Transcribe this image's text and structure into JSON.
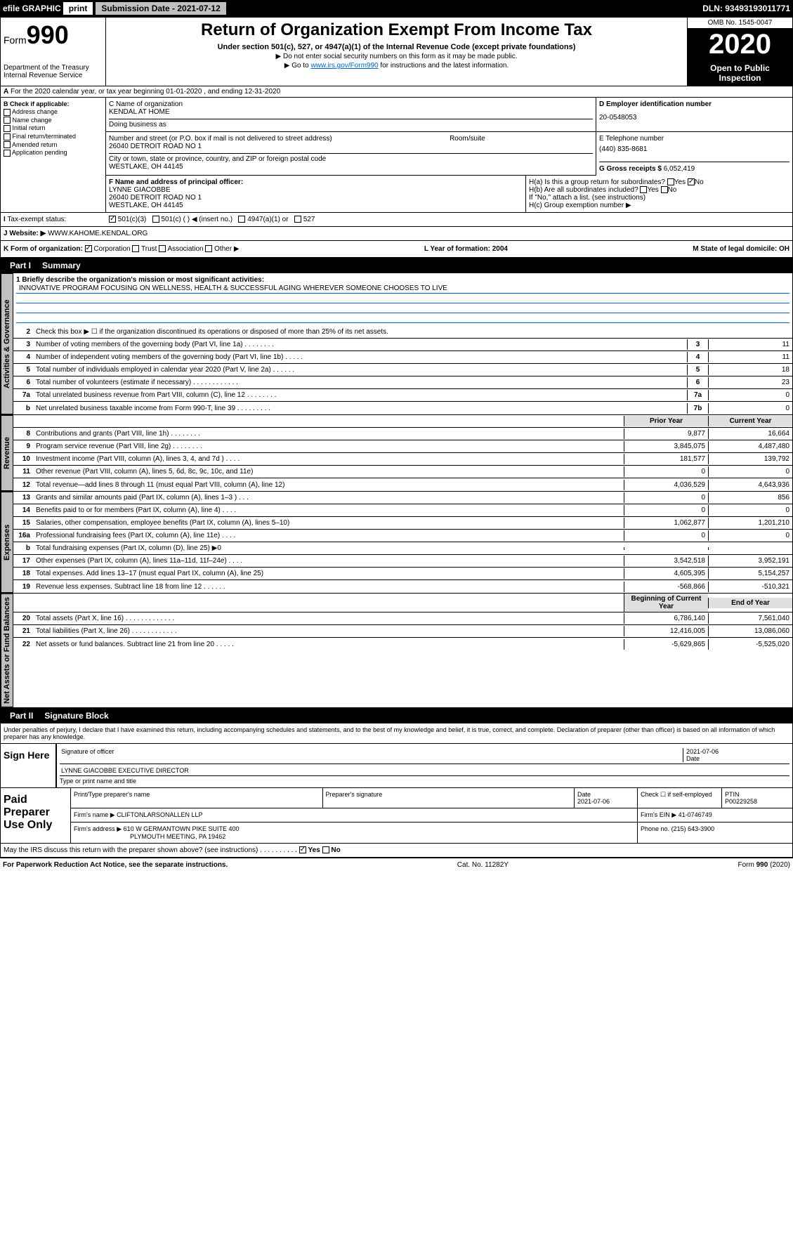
{
  "header": {
    "efile": "efile GRAPHIC",
    "print": "print",
    "submission_label": "Submission Date - 2021-07-12",
    "dln": "DLN: 93493193011771"
  },
  "form_box": {
    "form_text": "Form",
    "form_num": "990",
    "dept": "Department of the Treasury",
    "irs": "Internal Revenue Service"
  },
  "title": {
    "main": "Return of Organization Exempt From Income Tax",
    "sub": "Under section 501(c), 527, or 4947(a)(1) of the Internal Revenue Code (except private foundations)",
    "note1": "▶ Do not enter social security numbers on this form as it may be made public.",
    "note2_pre": "▶ Go to ",
    "note2_link": "www.irs.gov/Form990",
    "note2_post": " for instructions and the latest information."
  },
  "year_box": {
    "omb": "OMB No. 1545-0047",
    "year": "2020",
    "open": "Open to Public Inspection"
  },
  "row_a": "For the 2020 calendar year, or tax year beginning 01-01-2020    , and ending 12-31-2020",
  "col_b": {
    "header": "B Check if applicable:",
    "addr": "Address change",
    "name": "Name change",
    "initial": "Initial return",
    "final": "Final return/terminated",
    "amended": "Amended return",
    "app": "Application pending"
  },
  "col_c": {
    "name_label": "C Name of organization",
    "name": "KENDAL AT HOME",
    "dba_label": "Doing business as",
    "addr_label": "Number and street (or P.O. box if mail is not delivered to street address)",
    "addr": "26040 DETROIT ROAD NO 1",
    "room_label": "Room/suite",
    "city_label": "City or town, state or province, country, and ZIP or foreign postal code",
    "city": "WESTLAKE, OH  44145"
  },
  "col_d": {
    "label": "D Employer identification number",
    "value": "20-0548053"
  },
  "col_e": {
    "label": "E Telephone number",
    "value": "(440) 835-8681"
  },
  "col_g": {
    "label": "G Gross receipts $",
    "value": "6,052,419"
  },
  "col_f": {
    "label": "F Name and address of principal officer:",
    "name": "LYNNE GIACOBBE",
    "addr1": "26040 DETROIT ROAD NO 1",
    "addr2": "WESTLAKE, OH  44145"
  },
  "col_h": {
    "a": "H(a)  Is this a group return for subordinates?",
    "b": "H(b)  Are all subordinates included?",
    "b_note": "If \"No,\" attach a list. (see instructions)",
    "c": "H(c)  Group exemption number ▶",
    "yes": "Yes",
    "no": "No"
  },
  "status": {
    "i": "I",
    "label": "Tax-exempt status:",
    "c3": "501(c)(3)",
    "c": "501(c) (   ) ◀ (insert no.)",
    "a1": "4947(a)(1) or",
    "s527": "527"
  },
  "website": {
    "j": "J",
    "label": "Website: ▶",
    "value": "WWW.KAHOME.KENDAL.ORG"
  },
  "form_org": {
    "k": "K Form of organization:",
    "corp": "Corporation",
    "trust": "Trust",
    "assoc": "Association",
    "other": "Other ▶",
    "l": "L Year of formation: 2004",
    "m": "M State of legal domicile: OH"
  },
  "part1": {
    "header": "Part I",
    "title": "Summary",
    "vtab1": "Activities & Governance",
    "vtab2": "Revenue",
    "vtab3": "Expenses",
    "vtab4": "Net Assets or Fund Balances",
    "line1_label": "1  Briefly describe the organization's mission or most significant activities:",
    "line1_text": "INNOVATIVE PROGRAM FOCUSING ON WELLNESS, HEALTH & SUCCESSFUL AGING WHEREVER SOMEONE CHOOSES TO LIVE",
    "line2": "Check this box ▶ ☐ if the organization discontinued its operations or disposed of more than 25% of its net assets.",
    "lines_gov": [
      {
        "n": "3",
        "t": "Number of voting members of the governing body (Part VI, line 1a)   .    .    .    .    .    .    .    .",
        "b": "3",
        "v": "11"
      },
      {
        "n": "4",
        "t": "Number of independent voting members of the governing body (Part VI, line 1b)   .    .    .    .    .",
        "b": "4",
        "v": "11"
      },
      {
        "n": "5",
        "t": "Total number of individuals employed in calendar year 2020 (Part V, line 2a)   .    .    .    .    .    .",
        "b": "5",
        "v": "18"
      },
      {
        "n": "6",
        "t": "Total number of volunteers (estimate if necessary)   .    .    .    .    .    .    .    .    .    .    .    .",
        "b": "6",
        "v": "23"
      },
      {
        "n": "7a",
        "t": "Total unrelated business revenue from Part VIII, column (C), line 12   .    .    .    .    .    .    .    .",
        "b": "7a",
        "v": "0"
      },
      {
        "n": "b",
        "t": "Net unrelated business taxable income from Form 990-T, line 39   .    .    .    .    .    .    .    .    .",
        "b": "7b",
        "v": "0"
      }
    ],
    "prior_year": "Prior Year",
    "current_year": "Current Year",
    "lines_rev": [
      {
        "n": "8",
        "t": "Contributions and grants (Part VIII, line 1h)   .    .    .    .    .    .    .    .",
        "py": "9,877",
        "cy": "16,664"
      },
      {
        "n": "9",
        "t": "Program service revenue (Part VIII, line 2g)   .    .    .    .    .    .    .    .",
        "py": "3,845,075",
        "cy": "4,487,480"
      },
      {
        "n": "10",
        "t": "Investment income (Part VIII, column (A), lines 3, 4, and 7d )   .    .    .    .",
        "py": "181,577",
        "cy": "139,792"
      },
      {
        "n": "11",
        "t": "Other revenue (Part VIII, column (A), lines 5, 6d, 8c, 9c, 10c, and 11e)",
        "py": "0",
        "cy": "0"
      },
      {
        "n": "12",
        "t": "Total revenue—add lines 8 through 11 (must equal Part VIII, column (A), line 12)",
        "py": "4,036,529",
        "cy": "4,643,936"
      }
    ],
    "lines_exp": [
      {
        "n": "13",
        "t": "Grants and similar amounts paid (Part IX, column (A), lines 1–3 )   .    .    .",
        "py": "0",
        "cy": "856"
      },
      {
        "n": "14",
        "t": "Benefits paid to or for members (Part IX, column (A), line 4)   .    .    .    .",
        "py": "0",
        "cy": "0"
      },
      {
        "n": "15",
        "t": "Salaries, other compensation, employee benefits (Part IX, column (A), lines 5–10)",
        "py": "1,062,877",
        "cy": "1,201,210"
      },
      {
        "n": "16a",
        "t": "Professional fundraising fees (Part IX, column (A), line 11e)   .    .    .    .",
        "py": "0",
        "cy": "0"
      },
      {
        "n": "b",
        "t": "Total fundraising expenses (Part IX, column (D), line 25) ▶0",
        "py": "",
        "cy": ""
      },
      {
        "n": "17",
        "t": "Other expenses (Part IX, column (A), lines 11a–11d, 11f–24e)   .    .    .    .",
        "py": "3,542,518",
        "cy": "3,952,191"
      },
      {
        "n": "18",
        "t": "Total expenses. Add lines 13–17 (must equal Part IX, column (A), line 25)",
        "py": "4,605,395",
        "cy": "5,154,257"
      },
      {
        "n": "19",
        "t": "Revenue less expenses. Subtract line 18 from line 12   .    .    .    .    .    .",
        "py": "-568,866",
        "cy": "-510,321"
      }
    ],
    "boy": "Beginning of Current Year",
    "eoy": "End of Year",
    "lines_net": [
      {
        "n": "20",
        "t": "Total assets (Part X, line 16)   .    .    .    .    .    .    .    .    .    .    .    .    .",
        "py": "6,786,140",
        "cy": "7,561,040"
      },
      {
        "n": "21",
        "t": "Total liabilities (Part X, line 26)   .    .    .    .    .    .    .    .    .    .    .    .",
        "py": "12,416,005",
        "cy": "13,086,060"
      },
      {
        "n": "22",
        "t": "Net assets or fund balances. Subtract line 21 from line 20   .    .    .    .    .",
        "py": "-5,629,865",
        "cy": "-5,525,020"
      }
    ]
  },
  "part2": {
    "header": "Part II",
    "title": "Signature Block",
    "perjury": "Under penalties of perjury, I declare that I have examined this return, including accompanying schedules and statements, and to the best of my knowledge and belief, it is true, correct, and complete. Declaration of preparer (other than officer) is based on all information of which preparer has any knowledge.",
    "sign": "Sign Here",
    "sig_officer": "Signature of officer",
    "date1": "2021-07-06",
    "date_label": "Date",
    "officer_name": "LYNNE GIACOBBE EXECUTIVE DIRECTOR",
    "type_name": "Type or print name and title",
    "paid": "Paid Preparer Use Only",
    "prep_name_label": "Print/Type preparer's name",
    "prep_sig_label": "Preparer's signature",
    "prep_date": "2021-07-06",
    "check_self": "Check ☐ if self-employed",
    "ptin_label": "PTIN",
    "ptin": "P00229258",
    "firm_name_label": "Firm's name    ▶",
    "firm_name": "CLIFTONLARSONALLEN LLP",
    "firm_ein_label": "Firm's EIN ▶",
    "firm_ein": "41-0746749",
    "firm_addr_label": "Firm's address ▶",
    "firm_addr1": "610 W GERMANTOWN PIKE SUITE 400",
    "firm_addr2": "PLYMOUTH MEETING, PA  19462",
    "phone_label": "Phone no.",
    "phone": "(215) 643-3900",
    "discuss": "May the IRS discuss this return with the preparer shown above? (see instructions)   .    .    .    .    .    .    .    .    .    .",
    "yes": "Yes",
    "no": "No"
  },
  "footer": {
    "paperwork": "For Paperwork Reduction Act Notice, see the separate instructions.",
    "cat": "Cat. No. 11282Y",
    "form": "Form 990 (2020)"
  }
}
